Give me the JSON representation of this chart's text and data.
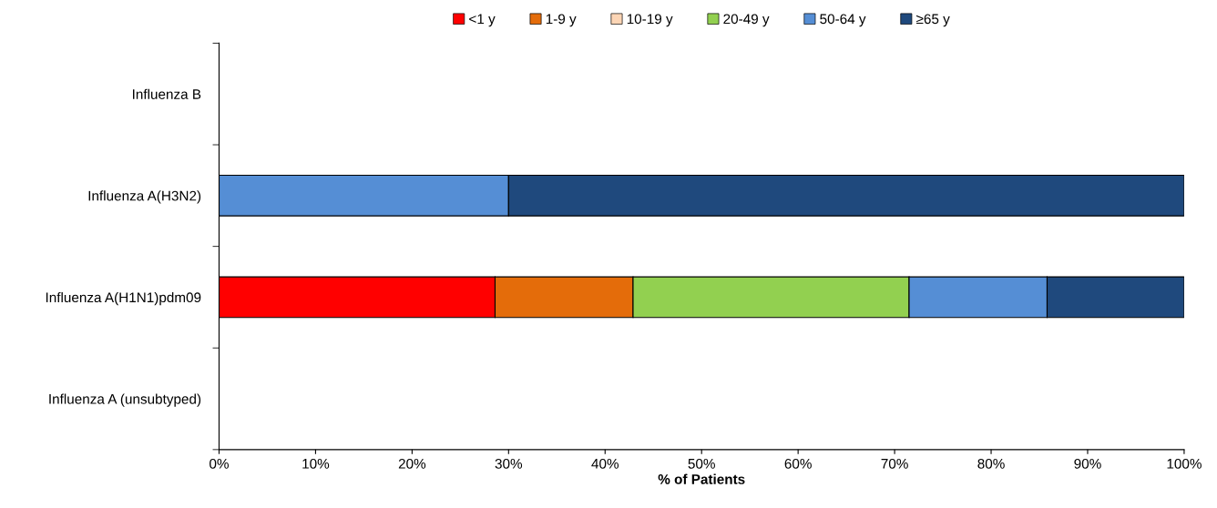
{
  "chart_data": {
    "type": "bar",
    "orientation": "horizontal",
    "stacked": true,
    "categories": [
      "Influenza B",
      "Influenza A(H3N2)",
      "Influenza A(H1N1)pdm09",
      "Influenza A (unsubtyped)"
    ],
    "series": [
      {
        "name": "<1 y",
        "color": "#ff0000",
        "values": [
          null,
          null,
          28.6,
          null
        ]
      },
      {
        "name": "1-9 y",
        "color": "#e46c0a",
        "values": [
          null,
          null,
          14.3,
          null
        ]
      },
      {
        "name": "10-19 y",
        "color": "#fcd5b5",
        "values": [
          null,
          null,
          null,
          null
        ]
      },
      {
        "name": "20-49 y",
        "color": "#92d050",
        "values": [
          null,
          null,
          28.6,
          null
        ]
      },
      {
        "name": "50-64 y",
        "color": "#558ed5",
        "values": [
          null,
          30,
          14.3,
          null
        ]
      },
      {
        "name": "≥65 y",
        "color": "#1f497d",
        "values": [
          null,
          70,
          14.2,
          null
        ]
      }
    ],
    "xlim": [
      0,
      100
    ],
    "xticks": [
      {
        "value": 0,
        "label": "0%"
      },
      {
        "value": 10,
        "label": "10%"
      },
      {
        "value": 20,
        "label": "20%"
      },
      {
        "value": 30,
        "label": "30%"
      },
      {
        "value": 40,
        "label": "40%"
      },
      {
        "value": 50,
        "label": "50%"
      },
      {
        "value": 60,
        "label": "60%"
      },
      {
        "value": 70,
        "label": "70%"
      },
      {
        "value": 80,
        "label": "80%"
      },
      {
        "value": 90,
        "label": "90%"
      },
      {
        "value": 100,
        "label": "100%"
      }
    ],
    "xlabel": "% of Patients",
    "grid": false,
    "legend": "top"
  }
}
